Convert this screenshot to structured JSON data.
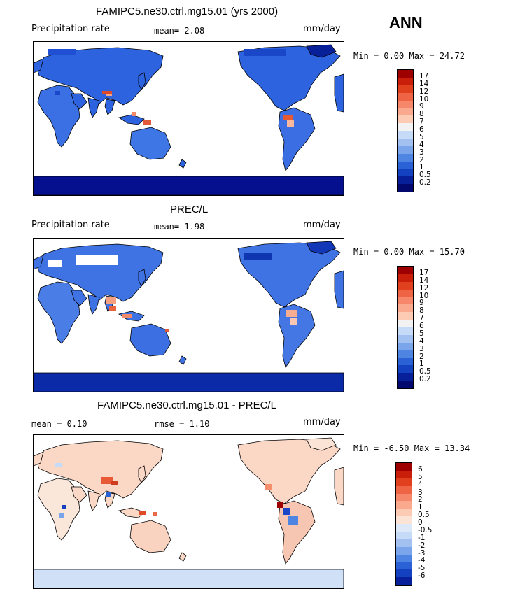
{
  "season": "ANN",
  "panels": [
    {
      "title": "FAMIPC5.ne30.ctrl.mg15.01 (yrs 2000)",
      "left_label": "Precipitation rate",
      "stat1": "mean=   2.08",
      "units": "mm/day",
      "minmax": "Min =   0.00 Max =  24.72",
      "colorbar": {
        "labels": [
          "17",
          "14",
          "12",
          "10",
          "9",
          "8",
          "7",
          "6",
          "5",
          "4",
          "3",
          "2",
          "1",
          "0.5",
          "0.2"
        ],
        "colors": [
          "#9e0000",
          "#c81e0a",
          "#e0401e",
          "#f06446",
          "#f7876a",
          "#fba98e",
          "#fdcab4",
          "#f2f2f2",
          "#c6dbf7",
          "#a2c1f1",
          "#7aa5ea",
          "#4f85e2",
          "#2a62d6",
          "#1441c0",
          "#071f98",
          "#02086e"
        ]
      }
    },
    {
      "title": "PREC/L",
      "left_label": "Precipitation rate",
      "stat1": "mean=   1.98",
      "units": "mm/day",
      "minmax": "Min =   0.00 Max =  15.70",
      "colorbar": {
        "labels": [
          "17",
          "14",
          "12",
          "10",
          "9",
          "8",
          "7",
          "6",
          "5",
          "4",
          "3",
          "2",
          "1",
          "0.5",
          "0.2"
        ],
        "colors": [
          "#9e0000",
          "#c81e0a",
          "#e0401e",
          "#f06446",
          "#f7876a",
          "#fba98e",
          "#fdcab4",
          "#f2f2f2",
          "#c6dbf7",
          "#a2c1f1",
          "#7aa5ea",
          "#4f85e2",
          "#2a62d6",
          "#1441c0",
          "#071f98",
          "#02086e"
        ]
      }
    },
    {
      "title": "FAMIPC5.ne30.ctrl.mg15.01 - PREC/L",
      "left_label": "mean =    0.10",
      "stat1": "rmse =    1.10",
      "units": "mm/day",
      "minmax": "Min =  -6.50 Max =  13.34",
      "colorbar": {
        "labels": [
          "6",
          "5",
          "4",
          "3",
          "2",
          "1",
          "0.5",
          "0",
          "-0.5",
          "-1",
          "-2",
          "-3",
          "-4",
          "-5",
          "-6"
        ],
        "colors": [
          "#9e0000",
          "#c81e0a",
          "#e0401e",
          "#f06446",
          "#f7876a",
          "#fba98e",
          "#fdcab4",
          "#fbe3d6",
          "#dde9f8",
          "#c6dbf7",
          "#a2c1f1",
          "#7aa5ea",
          "#4f85e2",
          "#2a62d6",
          "#1441c0",
          "#071f98"
        ]
      }
    }
  ]
}
